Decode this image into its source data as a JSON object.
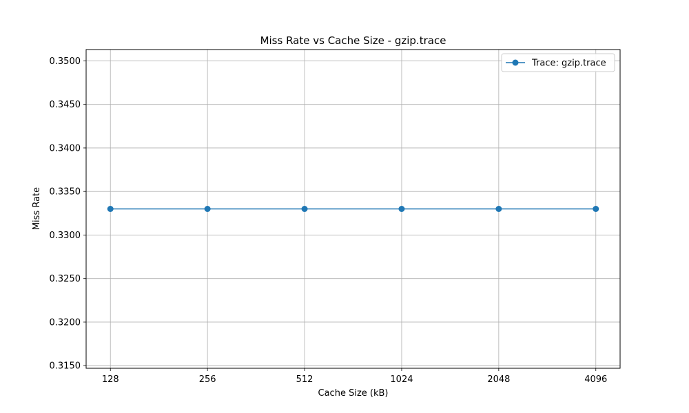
{
  "chart_data": {
    "type": "line",
    "title": "Miss Rate vs Cache Size - gzip.trace",
    "xlabel": "Cache Size (kB)",
    "ylabel": "Miss Rate",
    "categories": [
      "128",
      "256",
      "512",
      "1024",
      "2048",
      "4096"
    ],
    "series": [
      {
        "name": "Trace: gzip.trace",
        "values": [
          0.333,
          0.333,
          0.333,
          0.333,
          0.333,
          0.333
        ],
        "color": "#1f77b4",
        "marker": "circle"
      }
    ],
    "yticks": [
      "0.3150",
      "0.3200",
      "0.3250",
      "0.3300",
      "0.3350",
      "0.3400",
      "0.3450",
      "0.3500"
    ],
    "ylim": [
      0.3147,
      0.3513
    ],
    "grid": true,
    "legend_position": "top-right"
  }
}
